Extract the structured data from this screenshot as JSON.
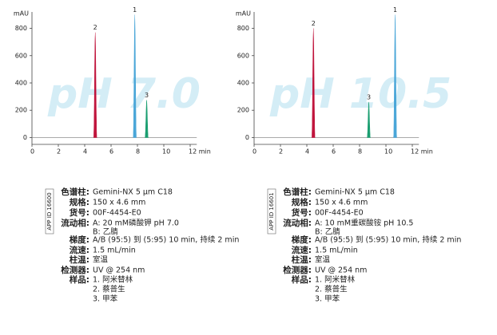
{
  "chart_data": [
    {
      "type": "chromatogram",
      "watermark": "pH 7.0",
      "y_label": "mAU",
      "xlim": [
        0,
        12.5
      ],
      "xticks": [
        0,
        2,
        4,
        6,
        8,
        10,
        {
          "value": 12,
          "label": "12 min"
        }
      ],
      "ylim": [
        -50,
        920
      ],
      "yticks": [
        0,
        200,
        400,
        600,
        800
      ],
      "peaks": [
        {
          "label": "2",
          "x": 4.8,
          "y": 770,
          "color": "#c0143c"
        },
        {
          "label": "1",
          "x": 7.8,
          "y": 900,
          "color": "#4aa6d8"
        },
        {
          "label": "3",
          "x": 8.7,
          "y": 275,
          "color": "#1a9e70"
        }
      ]
    },
    {
      "type": "chromatogram",
      "watermark": "pH 10.5",
      "y_label": "mAU",
      "xlim": [
        0,
        12.5
      ],
      "xticks": [
        0,
        2,
        4,
        6,
        8,
        10,
        {
          "value": 12,
          "label": "12 min"
        }
      ],
      "ylim": [
        -50,
        920
      ],
      "yticks": [
        0,
        200,
        400,
        600,
        800
      ],
      "peaks": [
        {
          "label": "2",
          "x": 4.5,
          "y": 800,
          "color": "#c0143c"
        },
        {
          "label": "3",
          "x": 8.7,
          "y": 260,
          "color": "#1a9e70"
        },
        {
          "label": "1",
          "x": 10.7,
          "y": 900,
          "color": "#4aa6d8"
        }
      ]
    }
  ],
  "methods": [
    {
      "app_id": "APP ID 16600",
      "rows": [
        {
          "label": "色谱柱:",
          "value": "Gemini-NX 5 µm C18"
        },
        {
          "label": "规格:",
          "value": "150 x 4.6 mm"
        },
        {
          "label": "货号:",
          "value": "00F-4454-E0"
        },
        {
          "label": "流动相:",
          "value": "A: 20 mM磷酸钾 pH 7.0"
        },
        {
          "value": "B: 乙腈"
        },
        {
          "label": "梯度:",
          "value": "A/B (95:5) 到 (5:95) 10 min, 持续 2 min"
        },
        {
          "label": "流速:",
          "value": "1.5 mL/min"
        },
        {
          "label": "柱温:",
          "value": "室温"
        },
        {
          "label": "检测器:",
          "value": "UV @ 254 nm"
        },
        {
          "label": "样品:",
          "value": "1.   阿米替林"
        },
        {
          "value": "2.   蔡普生"
        },
        {
          "value": "3.   甲苯"
        }
      ]
    },
    {
      "app_id": "APP ID 16601",
      "rows": [
        {
          "label": "色谱柱:",
          "value": "Gemini-NX 5 µm C18"
        },
        {
          "label": "规格:",
          "value": "150 x 4.6 mm"
        },
        {
          "label": "货号:",
          "value": "00F-4454-E0"
        },
        {
          "label": "流动相:",
          "value": "A: 10 mM重碳酸铵 pH 10.5"
        },
        {
          "value": "B: 乙腈"
        },
        {
          "label": "梯度:",
          "value": "A/B (95:5) 到 (5:95) 10 min, 持续 2 min"
        },
        {
          "label": "流速:",
          "value": "1.5 mL/min"
        },
        {
          "label": "柱温:",
          "value": "室温"
        },
        {
          "label": "检测器:",
          "value": "UV @ 254 nm"
        },
        {
          "label": "样品:",
          "value": "1.   阿米替林"
        },
        {
          "value": "2.   蔡普生"
        },
        {
          "value": "3.   甲苯"
        }
      ]
    }
  ]
}
